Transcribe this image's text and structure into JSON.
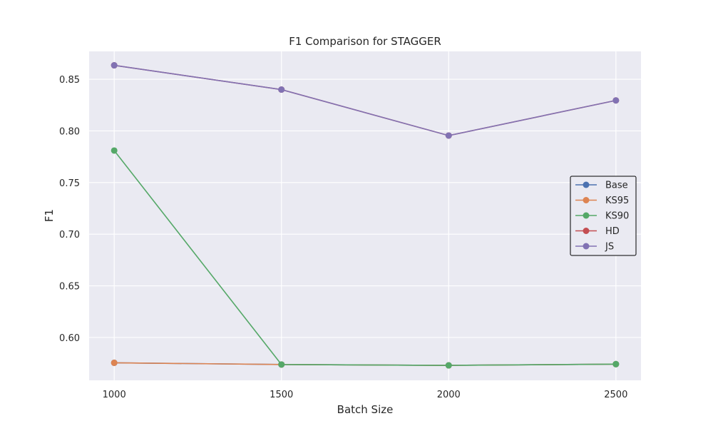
{
  "chart_data": {
    "type": "line",
    "title": "F1 Comparison for STAGGER",
    "xlabel": "Batch Size",
    "ylabel": "F1",
    "x": [
      1000,
      1500,
      2000,
      2500
    ],
    "x_tick_labels": [
      "1000",
      "1500",
      "2000",
      "2500"
    ],
    "xlim": [
      925,
      2575
    ],
    "ylim": [
      0.5585,
      0.877
    ],
    "y_ticks": [
      0.6,
      0.65,
      0.7,
      0.75,
      0.8,
      0.85
    ],
    "y_tick_labels": [
      "0.60",
      "0.65",
      "0.70",
      "0.75",
      "0.80",
      "0.85"
    ],
    "grid": true,
    "legend_position": "center-right",
    "series": [
      {
        "name": "Base",
        "color": "#4c72b0",
        "values": [
          0.5755,
          0.5738,
          0.573,
          0.5742
        ]
      },
      {
        "name": "KS95",
        "color": "#dd8452",
        "values": [
          0.5755,
          0.5738,
          0.573,
          0.5742
        ]
      },
      {
        "name": "KS90",
        "color": "#55a868",
        "values": [
          0.781,
          0.5738,
          0.573,
          0.5742
        ]
      },
      {
        "name": "HD",
        "color": "#c44e52",
        "values": [
          0.8635,
          0.84,
          0.7955,
          0.8295
        ]
      },
      {
        "name": "JS",
        "color": "#8172b3",
        "values": [
          0.8635,
          0.84,
          0.7955,
          0.8295
        ]
      }
    ]
  }
}
